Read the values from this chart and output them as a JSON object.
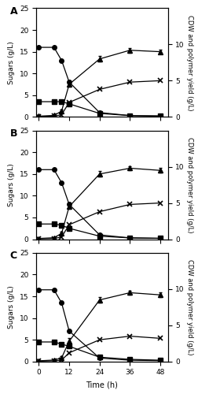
{
  "panels": [
    {
      "label": "A",
      "circle": {
        "x": [
          0,
          6,
          9,
          12,
          24,
          36,
          48
        ],
        "y": [
          16,
          16,
          13,
          8,
          1,
          0.3,
          0.2
        ]
      },
      "square": {
        "x": [
          0,
          6,
          9,
          12,
          24,
          36,
          48
        ],
        "y": [
          3.5,
          3.5,
          3.5,
          3.0,
          0.8,
          0.3,
          0.2
        ]
      },
      "triangle": {
        "x": [
          0,
          6,
          9,
          12,
          24,
          36,
          48
        ],
        "y": [
          0.1,
          0.2,
          0.8,
          4.5,
          8.0,
          9.2,
          9.0
        ]
      },
      "cross": {
        "x": [
          0,
          6,
          9,
          12,
          24,
          36,
          48
        ],
        "y": [
          0.05,
          0.1,
          0.3,
          2.0,
          3.8,
          4.8,
          5.0
        ]
      },
      "triangle_err": [
        0.1,
        0.1,
        0.2,
        0.3,
        0.4,
        0.3,
        0.3
      ],
      "cross_err": [
        0.05,
        0.05,
        0.1,
        0.2,
        0.2,
        0.2,
        0.2
      ]
    },
    {
      "label": "B",
      "circle": {
        "x": [
          0,
          6,
          9,
          12,
          24,
          36,
          48
        ],
        "y": [
          16,
          16,
          13,
          8,
          1,
          0.3,
          0.2
        ]
      },
      "square": {
        "x": [
          0,
          6,
          9,
          12,
          24,
          36,
          48
        ],
        "y": [
          3.5,
          3.5,
          3.2,
          2.5,
          0.7,
          0.3,
          0.2
        ]
      },
      "triangle": {
        "x": [
          0,
          6,
          9,
          12,
          24,
          36,
          48
        ],
        "y": [
          0.1,
          0.2,
          0.8,
          4.5,
          9.0,
          9.8,
          9.5
        ]
      },
      "cross": {
        "x": [
          0,
          6,
          9,
          12,
          24,
          36,
          48
        ],
        "y": [
          0.05,
          0.1,
          0.3,
          2.0,
          3.8,
          4.8,
          5.0
        ]
      },
      "triangle_err": [
        0.1,
        0.1,
        0.2,
        0.3,
        0.4,
        0.3,
        0.3
      ],
      "cross_err": [
        0.05,
        0.05,
        0.1,
        0.2,
        0.2,
        0.2,
        0.2
      ]
    },
    {
      "label": "C",
      "circle": {
        "x": [
          0,
          6,
          9,
          12,
          24,
          36,
          48
        ],
        "y": [
          16.5,
          16.5,
          13.5,
          7,
          0.8,
          0.3,
          0.2
        ]
      },
      "square": {
        "x": [
          0,
          6,
          9,
          12,
          24,
          36,
          48
        ],
        "y": [
          4.5,
          4.5,
          4.0,
          3.5,
          1.0,
          0.5,
          0.3
        ]
      },
      "triangle": {
        "x": [
          0,
          6,
          9,
          12,
          24,
          36,
          48
        ],
        "y": [
          0.1,
          0.2,
          0.5,
          2.8,
          8.5,
          9.5,
          9.2
        ]
      },
      "cross": {
        "x": [
          0,
          6,
          9,
          12,
          24,
          36,
          48
        ],
        "y": [
          0.05,
          0.1,
          0.2,
          1.2,
          3.0,
          3.5,
          3.2
        ]
      },
      "triangle_err": [
        0.1,
        0.1,
        0.2,
        0.4,
        0.4,
        0.3,
        0.3
      ],
      "cross_err": [
        0.05,
        0.05,
        0.05,
        0.15,
        0.2,
        0.2,
        0.2
      ]
    }
  ],
  "left_ylim": [
    0,
    25
  ],
  "right_ylim": [
    0,
    15
  ],
  "left_yticks": [
    0,
    5,
    10,
    15,
    20,
    25
  ],
  "right_yticks": [
    0,
    5,
    10
  ],
  "right_ytick_labels": [
    "0",
    "5",
    "10"
  ],
  "xticks": [
    0,
    12,
    24,
    36,
    48
  ],
  "xlabel": "Time (h)",
  "left_ylabel": "Sugars (g/L)",
  "right_ylabel": "CDW and polymer yield (g/L)",
  "color": "black",
  "markersize": 4,
  "linewidth": 0.9
}
